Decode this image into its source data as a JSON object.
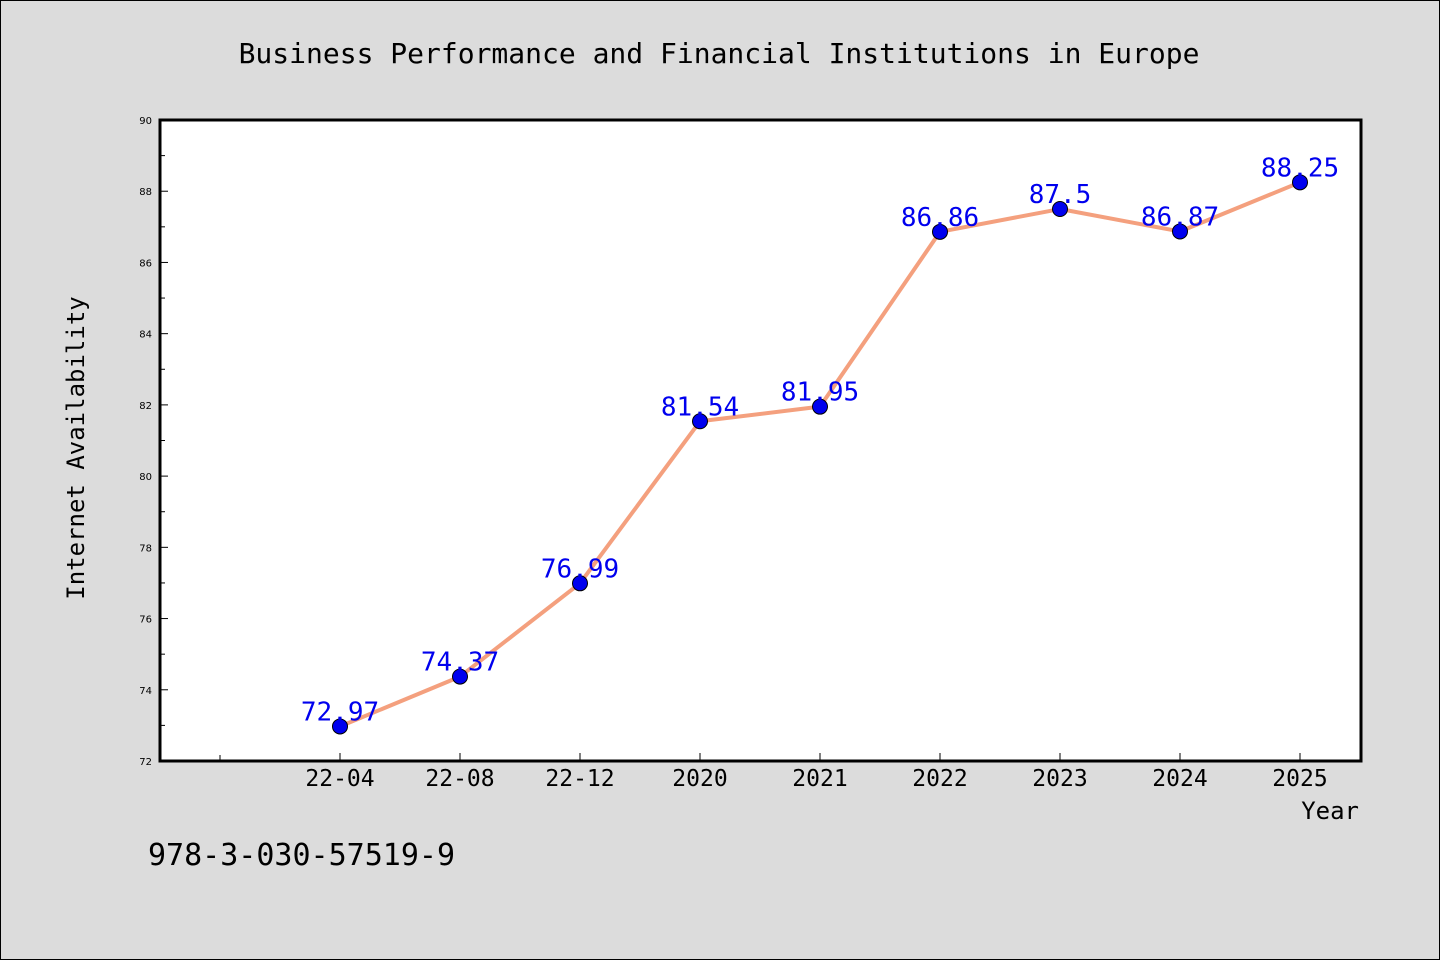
{
  "chart_data": {
    "type": "line",
    "title": "Business Performance and Financial Institutions in Europe",
    "xlabel": "Year",
    "ylabel": "Internet Availability",
    "categories": [
      "22-04",
      "22-08",
      "22-12",
      "2020",
      "2021",
      "2022",
      "2023",
      "2024",
      "2025"
    ],
    "series": [
      {
        "values": [
          72.97,
          74.37,
          76.99,
          81.54,
          81.95,
          86.86,
          87.5,
          86.87,
          88.25
        ],
        "labels": [
          "72.97",
          "74.37",
          "76.99",
          "81.54",
          "81.95",
          "86.86",
          "87.5",
          "86.87",
          "88.25"
        ]
      }
    ],
    "ylim": [
      72,
      90
    ],
    "yticks": [
      "72",
      "74",
      "76",
      "78",
      "80",
      "82",
      "84",
      "86",
      "88",
      "90"
    ],
    "grid": false,
    "legend": "none"
  },
  "annotation": "978-3-030-57519-9",
  "colors": {
    "background": "#dcdcdc",
    "plot_area": "#ffffff",
    "line": "#f4a07e",
    "marker": "#0000ee",
    "data_label": "#0000ee"
  }
}
